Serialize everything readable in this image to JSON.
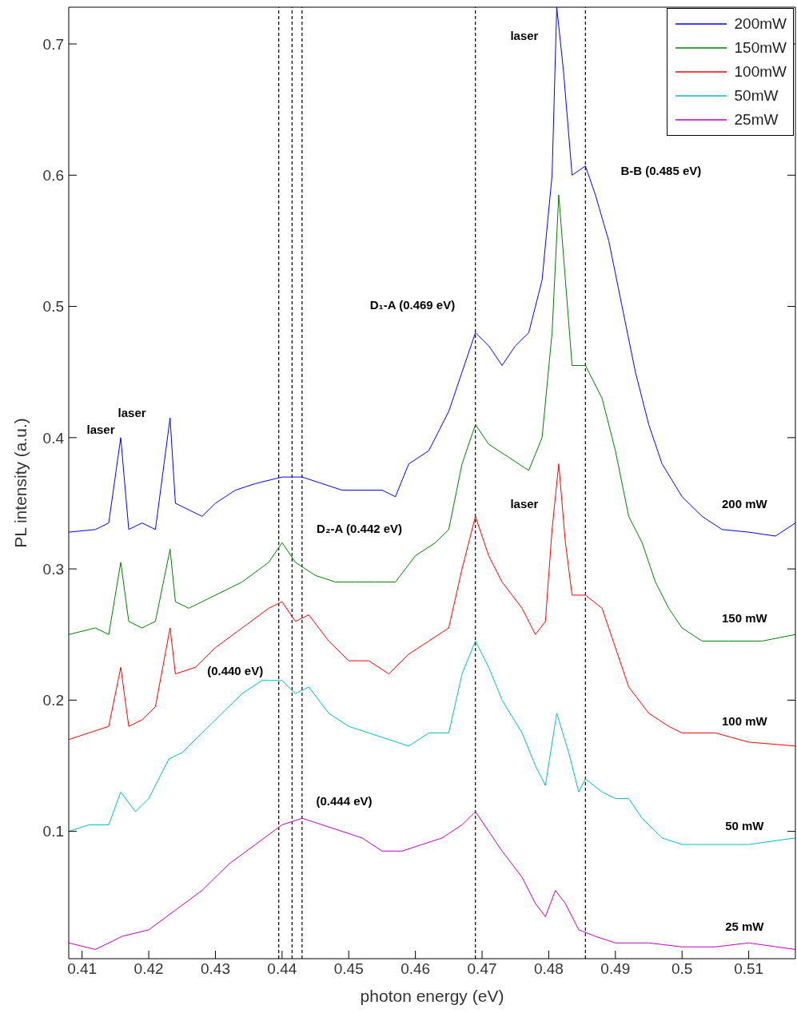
{
  "chart_data": {
    "type": "line",
    "xlabel": "photon energy (eV)",
    "ylabel": "PL intensity (a.u.)",
    "xlim": [
      0.408,
      0.517
    ],
    "xticks": [
      0.41,
      0.42,
      0.43,
      0.44,
      0.45,
      0.46,
      0.47,
      0.48,
      0.49,
      0.5,
      0.51
    ],
    "ylim": [
      0.003,
      0.728
    ],
    "yticks": [
      0.1,
      0.2,
      0.3,
      0.4,
      0.5,
      0.6,
      0.7
    ],
    "grid": false,
    "legend": "top right",
    "marker": "none",
    "line_style": "solid",
    "series": [
      {
        "name": "200mW",
        "color": "#0000ff",
        "x": [
          0.408,
          0.412,
          0.414,
          0.4158,
          0.417,
          0.419,
          0.421,
          0.4232,
          0.424,
          0.426,
          0.428,
          0.43,
          0.433,
          0.436,
          0.44,
          0.443,
          0.446,
          0.449,
          0.452,
          0.455,
          0.457,
          0.459,
          0.462,
          0.465,
          0.467,
          0.469,
          0.471,
          0.473,
          0.475,
          0.477,
          0.479,
          0.4805,
          0.4812,
          0.4822,
          0.4835,
          0.4855,
          0.487,
          0.489,
          0.491,
          0.493,
          0.495,
          0.497,
          0.5,
          0.503,
          0.506,
          0.51,
          0.514,
          0.517
        ],
        "values": [
          0.328,
          0.33,
          0.335,
          0.4,
          0.33,
          0.335,
          0.33,
          0.415,
          0.35,
          0.345,
          0.34,
          0.35,
          0.36,
          0.365,
          0.37,
          0.37,
          0.365,
          0.36,
          0.36,
          0.36,
          0.355,
          0.38,
          0.39,
          0.42,
          0.45,
          0.48,
          0.47,
          0.455,
          0.47,
          0.48,
          0.52,
          0.6,
          0.728,
          0.68,
          0.6,
          0.607,
          0.585,
          0.55,
          0.5,
          0.45,
          0.41,
          0.38,
          0.355,
          0.34,
          0.33,
          0.328,
          0.325,
          0.335
        ]
      },
      {
        "name": "150mW",
        "color": "#008000",
        "x": [
          0.408,
          0.412,
          0.414,
          0.4158,
          0.417,
          0.419,
          0.421,
          0.4232,
          0.424,
          0.426,
          0.43,
          0.434,
          0.438,
          0.44,
          0.442,
          0.445,
          0.448,
          0.451,
          0.454,
          0.457,
          0.46,
          0.463,
          0.465,
          0.467,
          0.469,
          0.471,
          0.474,
          0.477,
          0.479,
          0.4805,
          0.4815,
          0.4825,
          0.4835,
          0.4855,
          0.488,
          0.49,
          0.492,
          0.494,
          0.496,
          0.498,
          0.5,
          0.503,
          0.507,
          0.512,
          0.517
        ],
        "values": [
          0.25,
          0.255,
          0.25,
          0.305,
          0.26,
          0.255,
          0.26,
          0.315,
          0.275,
          0.27,
          0.28,
          0.29,
          0.305,
          0.32,
          0.305,
          0.295,
          0.29,
          0.29,
          0.29,
          0.29,
          0.31,
          0.32,
          0.33,
          0.38,
          0.41,
          0.395,
          0.385,
          0.375,
          0.4,
          0.48,
          0.585,
          0.52,
          0.455,
          0.455,
          0.43,
          0.39,
          0.34,
          0.32,
          0.29,
          0.27,
          0.255,
          0.245,
          0.245,
          0.245,
          0.25
        ]
      },
      {
        "name": "100mW",
        "color": "#ff0000",
        "x": [
          0.408,
          0.411,
          0.414,
          0.4158,
          0.417,
          0.419,
          0.421,
          0.4232,
          0.424,
          0.427,
          0.43,
          0.434,
          0.438,
          0.44,
          0.442,
          0.444,
          0.447,
          0.45,
          0.453,
          0.456,
          0.459,
          0.462,
          0.465,
          0.467,
          0.469,
          0.471,
          0.473,
          0.476,
          0.478,
          0.4795,
          0.4805,
          0.4815,
          0.4825,
          0.4835,
          0.4855,
          0.488,
          0.49,
          0.492,
          0.495,
          0.498,
          0.5,
          0.505,
          0.51,
          0.517
        ],
        "values": [
          0.17,
          0.175,
          0.18,
          0.225,
          0.18,
          0.185,
          0.195,
          0.255,
          0.22,
          0.225,
          0.24,
          0.255,
          0.27,
          0.275,
          0.26,
          0.265,
          0.245,
          0.23,
          0.23,
          0.22,
          0.235,
          0.245,
          0.255,
          0.3,
          0.34,
          0.31,
          0.29,
          0.27,
          0.25,
          0.26,
          0.33,
          0.38,
          0.32,
          0.28,
          0.28,
          0.27,
          0.24,
          0.21,
          0.19,
          0.18,
          0.175,
          0.175,
          0.168,
          0.165
        ]
      },
      {
        "name": "50mW",
        "color": "#00bfbf",
        "x": [
          0.408,
          0.411,
          0.414,
          0.4158,
          0.418,
          0.42,
          0.423,
          0.425,
          0.428,
          0.431,
          0.434,
          0.437,
          0.44,
          0.442,
          0.444,
          0.447,
          0.45,
          0.453,
          0.456,
          0.459,
          0.462,
          0.465,
          0.467,
          0.469,
          0.471,
          0.473,
          0.476,
          0.478,
          0.4795,
          0.4812,
          0.483,
          0.4845,
          0.4855,
          0.488,
          0.49,
          0.492,
          0.494,
          0.497,
          0.5,
          0.505,
          0.51,
          0.517
        ],
        "values": [
          0.1,
          0.105,
          0.105,
          0.13,
          0.115,
          0.125,
          0.155,
          0.16,
          0.175,
          0.19,
          0.205,
          0.215,
          0.215,
          0.205,
          0.21,
          0.19,
          0.18,
          0.175,
          0.17,
          0.165,
          0.175,
          0.175,
          0.22,
          0.245,
          0.225,
          0.2,
          0.175,
          0.15,
          0.135,
          0.19,
          0.16,
          0.13,
          0.14,
          0.13,
          0.125,
          0.125,
          0.11,
          0.095,
          0.09,
          0.09,
          0.09,
          0.095
        ]
      },
      {
        "name": "25mW",
        "color": "#bf00bf",
        "x": [
          0.408,
          0.412,
          0.416,
          0.42,
          0.424,
          0.428,
          0.432,
          0.436,
          0.44,
          0.443,
          0.446,
          0.449,
          0.452,
          0.455,
          0.458,
          0.461,
          0.464,
          0.467,
          0.469,
          0.471,
          0.473,
          0.476,
          0.478,
          0.4795,
          0.481,
          0.4825,
          0.4845,
          0.487,
          0.49,
          0.495,
          0.5,
          0.505,
          0.51,
          0.517
        ],
        "values": [
          0.015,
          0.01,
          0.02,
          0.025,
          0.04,
          0.055,
          0.075,
          0.09,
          0.105,
          0.11,
          0.105,
          0.1,
          0.095,
          0.085,
          0.085,
          0.09,
          0.095,
          0.105,
          0.115,
          0.1,
          0.085,
          0.065,
          0.045,
          0.035,
          0.055,
          0.045,
          0.025,
          0.02,
          0.015,
          0.015,
          0.012,
          0.012,
          0.015,
          0.01
        ]
      }
    ],
    "ref_lines": [
      {
        "axis": "x",
        "value": 0.4395,
        "color": "#000000",
        "line_style": "dashed"
      },
      {
        "axis": "x",
        "value": 0.4415,
        "color": "#000000",
        "line_style": "dashed"
      },
      {
        "axis": "x",
        "value": 0.443,
        "color": "#000000",
        "line_style": "dashed"
      },
      {
        "axis": "x",
        "value": 0.469,
        "color": "#000000",
        "line_style": "dashed"
      },
      {
        "axis": "x",
        "value": 0.4855,
        "color": "#000000",
        "line_style": "dashed"
      }
    ],
    "annotations": [
      "laser",
      "laser",
      "laser",
      "laser",
      "B-B (0.485 eV)",
      "D₁-A (0.469 eV)",
      "D₂-A (0.442 eV)",
      "(0.440 eV)",
      "(0.444 eV)",
      "200 mW",
      "150 mW",
      "100 mW",
      "50 mW",
      "25 mW"
    ]
  }
}
